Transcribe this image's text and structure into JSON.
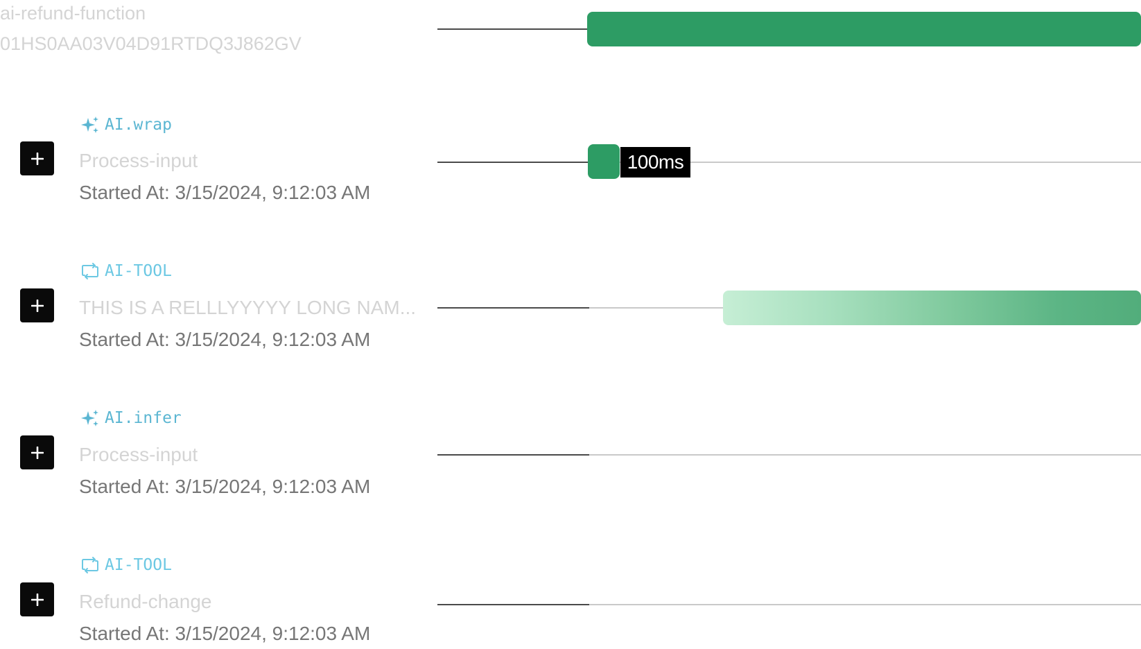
{
  "root": {
    "name": "ai-refund-function",
    "id": "01HS0AA03V04D91RTDQ3J862GV"
  },
  "colors": {
    "bar_solid": "#2d9c64",
    "kind_ai": "#5bb6d2",
    "kind_tool": "#6cc8e3",
    "expand_button": "#0a0a0a"
  },
  "steps": [
    {
      "kind": "AI.wrap",
      "kind_icon": "sparkles-icon",
      "name": "Process-input",
      "started_at": "Started At: 3/15/2024, 9:12:03 AM",
      "duration": "100ms"
    },
    {
      "kind": "AI-TOOL",
      "kind_icon": "loop-icon",
      "name": "THIS IS A RELLLYYYYY LONG NAM...",
      "started_at": "Started At: 3/15/2024, 9:12:03 AM"
    },
    {
      "kind": "AI.infer",
      "kind_icon": "sparkles-icon",
      "name": "Process-input",
      "started_at": "Started At: 3/15/2024, 9:12:03 AM"
    },
    {
      "kind": "AI-TOOL",
      "kind_icon": "loop-icon",
      "name": "Refund-change",
      "started_at": "Started At: 3/15/2024, 9:12:03 AM"
    }
  ]
}
